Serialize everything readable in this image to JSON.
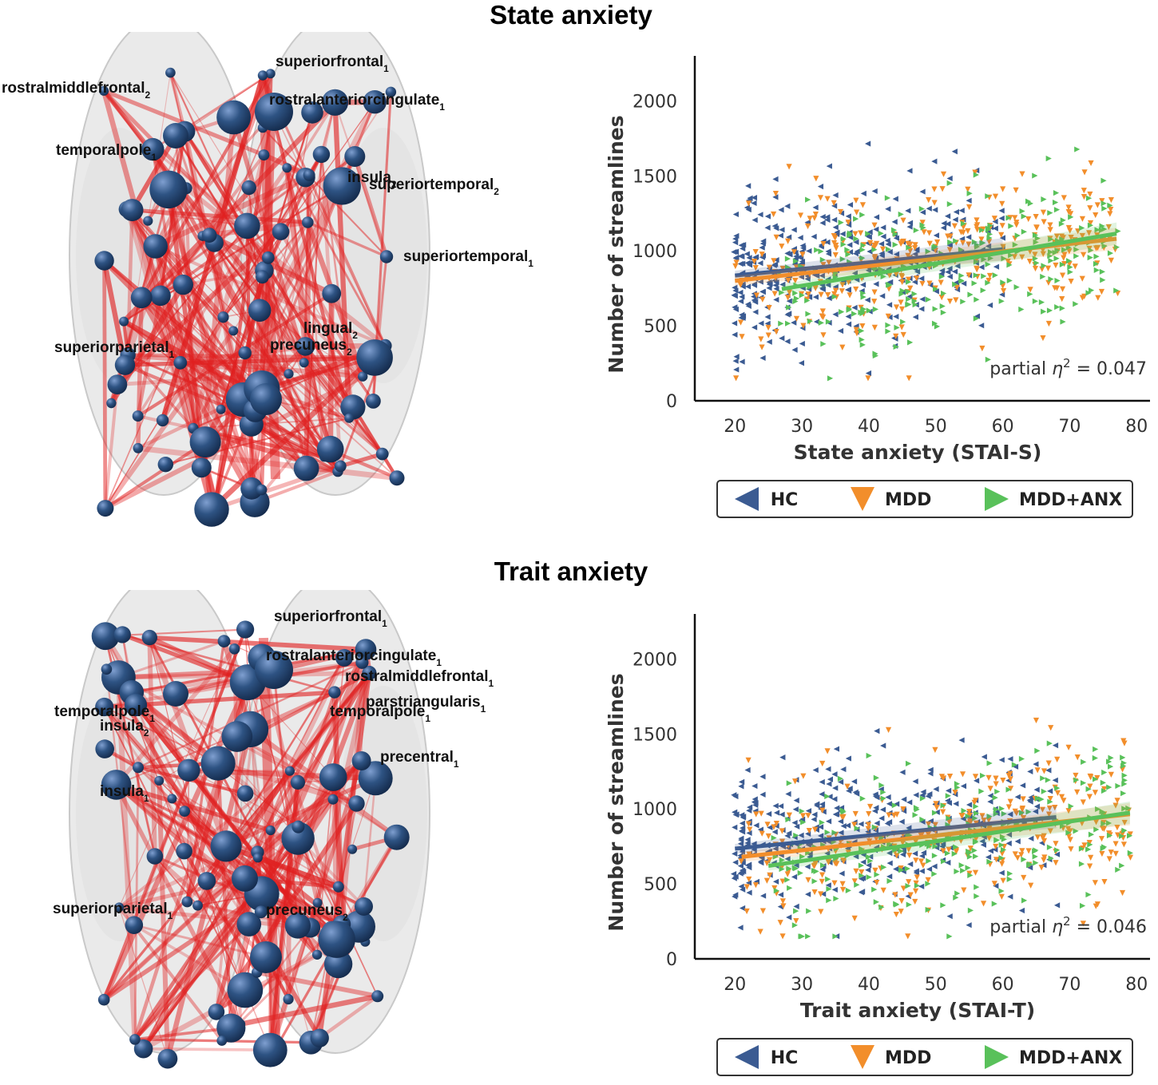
{
  "panels": [
    {
      "id": "state",
      "title": "State anxiety",
      "brain_labels": [
        {
          "name": "superiorfrontal",
          "sub": "1"
        },
        {
          "name": "rostralmiddlefrontal",
          "sub": "2"
        },
        {
          "name": "rostralanteriorcingulate",
          "sub": "1"
        },
        {
          "name": "temporalpole",
          "sub": "1"
        },
        {
          "name": "insula",
          "sub": "2"
        },
        {
          "name": "superiortemporal",
          "sub": "2"
        },
        {
          "name": "superiortemporal",
          "sub": "1"
        },
        {
          "name": "lingual",
          "sub": "2"
        },
        {
          "name": "superiorparietal",
          "sub": "1"
        },
        {
          "name": "precuneus",
          "sub": "2"
        }
      ]
    },
    {
      "id": "trait",
      "title": "Trait anxiety",
      "brain_labels": [
        {
          "name": "superiorfrontal",
          "sub": "1"
        },
        {
          "name": "rostralanteriorcingulate",
          "sub": "1"
        },
        {
          "name": "rostralmiddlefrontal",
          "sub": "1"
        },
        {
          "name": "parstriangularis",
          "sub": "1"
        },
        {
          "name": "temporalpole",
          "sub": "1"
        },
        {
          "name": "temporalpole",
          "sub": "1"
        },
        {
          "name": "insula",
          "sub": "2"
        },
        {
          "name": "precentral",
          "sub": "1"
        },
        {
          "name": "insula",
          "sub": "1"
        },
        {
          "name": "superiorparietal",
          "sub": "1"
        },
        {
          "name": "precuneus",
          "sub": "2"
        }
      ]
    }
  ],
  "chart_data": [
    {
      "type": "scatter",
      "title": "State anxiety",
      "xlabel": "State anxiety (STAI-S)",
      "ylabel": "Number of streamlines",
      "xlim": [
        14,
        82
      ],
      "ylim": [
        0,
        2300
      ],
      "xticks": [
        20,
        30,
        40,
        50,
        60,
        70,
        80
      ],
      "yticks": [
        0,
        500,
        1000,
        1500,
        2000
      ],
      "annotation": {
        "prefix": "partial ",
        "symbol": "η",
        "exp": "2",
        "value": " = 0.047"
      },
      "series": [
        {
          "name": "HC",
          "marker": "triangle-left",
          "color": "#3b5b92",
          "x_range": [
            20,
            60
          ],
          "fit": {
            "x": [
              20,
              60
            ],
            "y": [
              835,
              1010
            ]
          }
        },
        {
          "name": "MDD",
          "marker": "triangle-down",
          "color": "#f28e2b",
          "x_range": [
            20,
            77
          ],
          "fit": {
            "x": [
              20,
              77
            ],
            "y": [
              800,
              1080
            ]
          }
        },
        {
          "name": "MDD+ANX",
          "marker": "triangle-right",
          "color": "#59c15a",
          "x_range": [
            27,
            77
          ],
          "fit": {
            "x": [
              27,
              77
            ],
            "y": [
              745,
              1115
            ]
          }
        }
      ],
      "n_points_per_series": [
        380,
        330,
        260
      ]
    },
    {
      "type": "scatter",
      "title": "Trait anxiety",
      "xlabel": "Trait anxiety (STAI-T)",
      "ylabel": "Number of streamlines",
      "xlim": [
        14,
        82
      ],
      "ylim": [
        0,
        2300
      ],
      "xticks": [
        20,
        30,
        40,
        50,
        60,
        70,
        80
      ],
      "yticks": [
        0,
        500,
        1000,
        1500,
        2000
      ],
      "annotation": {
        "prefix": "partial ",
        "symbol": "η",
        "exp": "2",
        "value": " = 0.046"
      },
      "series": [
        {
          "name": "HC",
          "marker": "triangle-left",
          "color": "#3b5b92",
          "x_range": [
            20,
            68
          ],
          "fit": {
            "x": [
              20,
              68
            ],
            "y": [
              735,
              945
            ]
          }
        },
        {
          "name": "MDD",
          "marker": "triangle-down",
          "color": "#f28e2b",
          "x_range": [
            21,
            79
          ],
          "fit": {
            "x": [
              21,
              79
            ],
            "y": [
              680,
              965
            ]
          }
        },
        {
          "name": "MDD+ANX",
          "marker": "triangle-right",
          "color": "#59c15a",
          "x_range": [
            25,
            79
          ],
          "fit": {
            "x": [
              25,
              79
            ],
            "y": [
              620,
              975
            ]
          }
        }
      ],
      "n_points_per_series": [
        380,
        330,
        260
      ]
    }
  ],
  "legend": [
    {
      "label": "HC",
      "marker": "triangle-left",
      "color": "#3b5b92"
    },
    {
      "label": "MDD",
      "marker": "triangle-down",
      "color": "#f28e2b"
    },
    {
      "label": "MDD+ANX",
      "marker": "triangle-right",
      "color": "#59c15a"
    }
  ],
  "colors": {
    "node": "#2e5383",
    "edge": "#e02020",
    "brain": "#d9d9d9"
  }
}
